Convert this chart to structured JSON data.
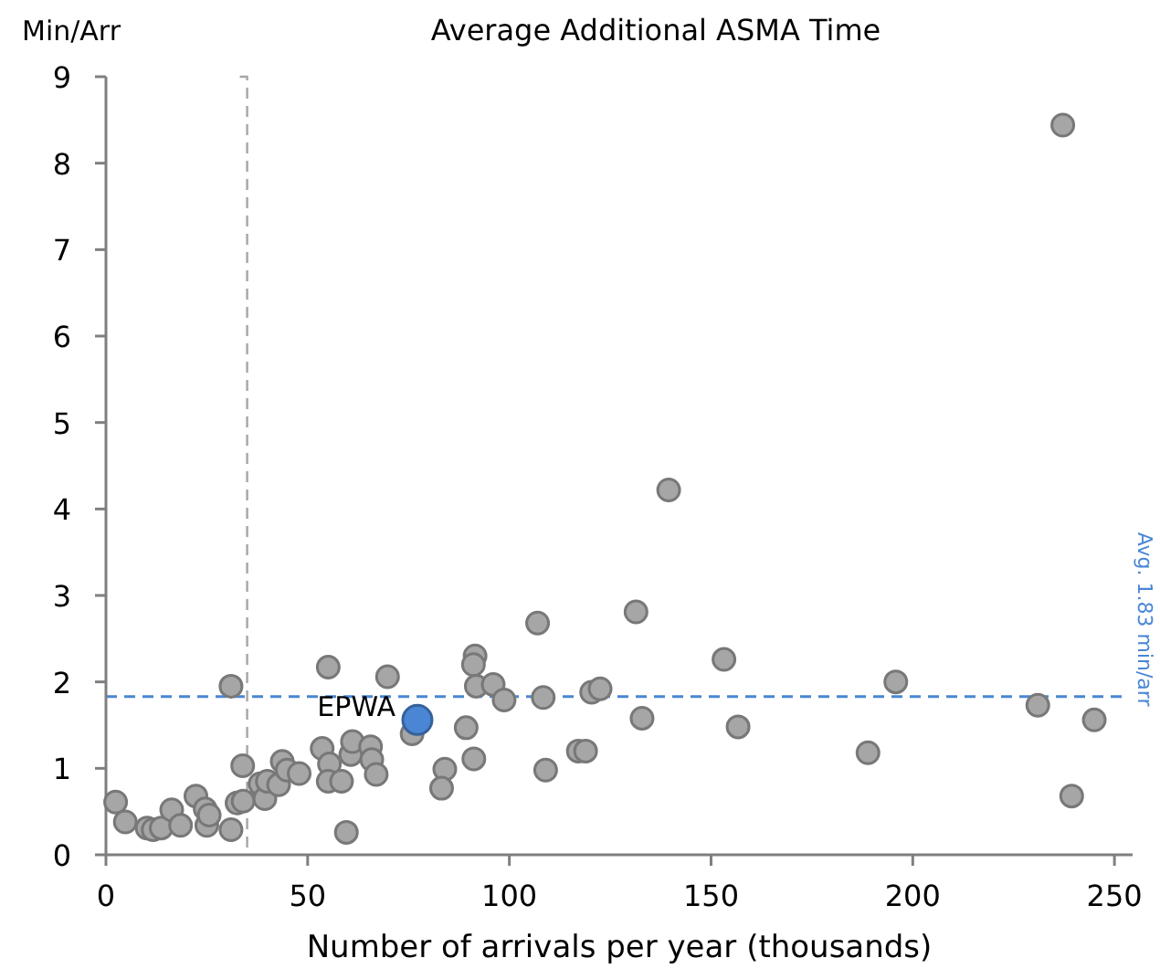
{
  "chart_data": {
    "type": "scatter",
    "title": "Average Additional ASMA Time",
    "xlabel": "Number of arrivals per year (thousands)",
    "ylabel": "Min/Arr",
    "xlim": [
      0,
      254.5
    ],
    "ylim": [
      0,
      9
    ],
    "xticks": [
      0,
      50,
      100,
      150,
      200,
      250
    ],
    "yticks": [
      0,
      1,
      2,
      3,
      4,
      5,
      6,
      7,
      8,
      9
    ],
    "grid": false,
    "marker": "circle",
    "ref_lines": [
      {
        "axis": "y",
        "value": 1.83,
        "label": "Avg. 1.83 min/arr",
        "color": "#4a86d4",
        "line_style": "dashed"
      },
      {
        "axis": "x",
        "value": 35,
        "label": null,
        "color": "#a6a6a6",
        "line_style": "dashed"
      }
    ],
    "series": [
      {
        "color": "#a6a6a6",
        "x": [
          2.4,
          4.8,
          10.2,
          11.7,
          13.7,
          16.3,
          18.5,
          22.3,
          24.6,
          25,
          25.6,
          31,
          31,
          32.5,
          34,
          33.9,
          38.2,
          39.4,
          40,
          42.8,
          43.7,
          44.9,
          47.9,
          55.1,
          53.6,
          55.4,
          55.1,
          58.4,
          59.6,
          60.7,
          61.1,
          65.6,
          65.9,
          67,
          69.8,
          75.9,
          84,
          83.2,
          89.3,
          91.2,
          91.5,
          91.1,
          91.8,
          96,
          98.7,
          107,
          108.4,
          109,
          117.1,
          118.9,
          120.4,
          122.5,
          131.4,
          132.9,
          139.5,
          153.2,
          156.7,
          188.9,
          195.8,
          231,
          237.2,
          239.4,
          245
        ],
        "values": [
          0.61,
          0.38,
          0.31,
          0.29,
          0.31,
          0.52,
          0.34,
          0.68,
          0.53,
          0.34,
          0.46,
          1.95,
          0.29,
          0.6,
          0.62,
          1.03,
          0.82,
          0.65,
          0.85,
          0.81,
          1.08,
          0.98,
          0.94,
          2.17,
          1.23,
          1.05,
          0.85,
          0.85,
          0.26,
          1.16,
          1.31,
          1.25,
          1.1,
          0.93,
          2.06,
          1.4,
          0.99,
          0.77,
          1.47,
          1.11,
          2.3,
          2.2,
          1.95,
          1.97,
          1.79,
          2.68,
          1.82,
          0.98,
          1.2,
          1.2,
          1.88,
          1.92,
          2.81,
          1.58,
          4.22,
          2.26,
          1.48,
          1.18,
          2,
          1.73,
          8.44,
          0.68,
          1.56
        ]
      },
      {
        "name": "EPWA",
        "color": "#4a86d4",
        "x": [
          77.2
        ],
        "values": [
          1.56
        ]
      }
    ]
  }
}
